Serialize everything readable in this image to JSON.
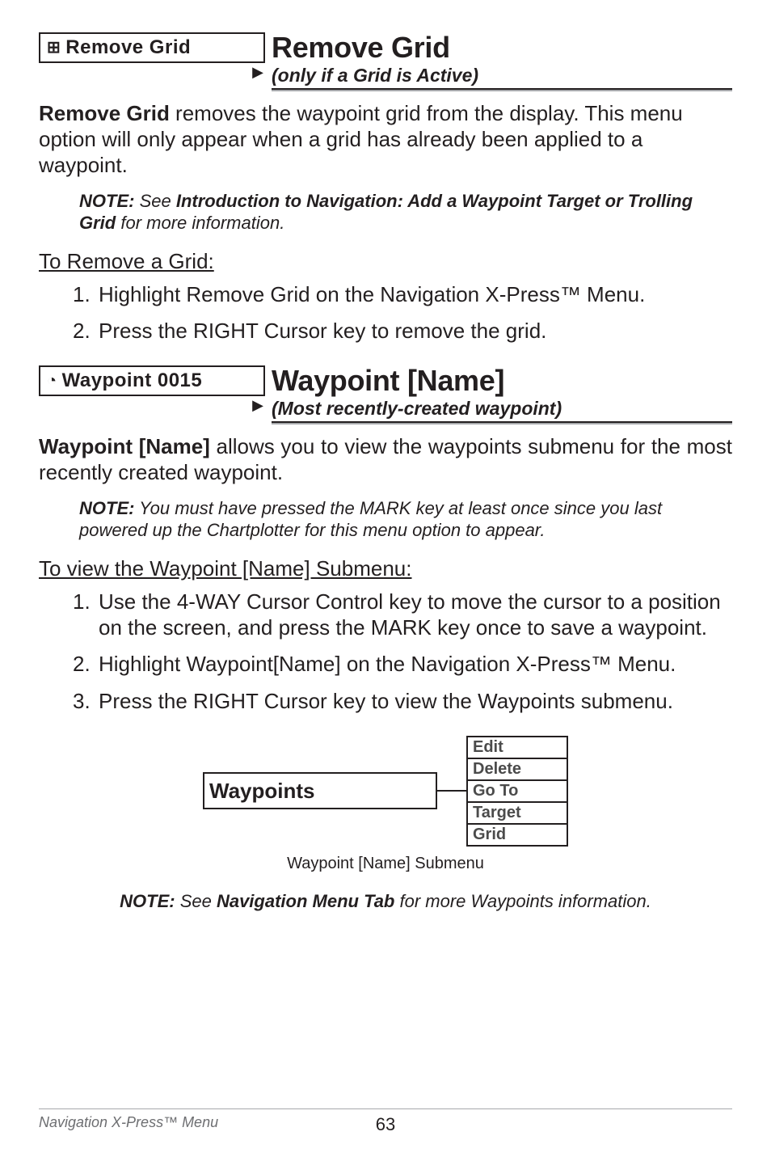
{
  "section1": {
    "menu_icon": "⊞",
    "menu_label": "Remove Grid",
    "arrow": "▶",
    "title": "Remove Grid",
    "subtitle": "(only if a Grid is Active)",
    "intro_bold": "Remove Grid",
    "intro_rest": " removes the waypoint grid from the display. This menu option will only appear when a grid has already been applied to a waypoint.",
    "note_lead": "NOTE:",
    "note_mid1": " See ",
    "note_bold": "Introduction to Navigation: Add a Waypoint Target or Trolling Grid",
    "note_mid2": " for more information.",
    "subhead": "To Remove a Grid:",
    "step1": "Highlight Remove Grid on the Navigation X-Press™ Menu.",
    "step2": "Press the RIGHT Cursor key to remove the grid."
  },
  "section2": {
    "menu_icon": "◔",
    "menu_label": "Waypoint 0015",
    "arrow": "▶",
    "title": "Waypoint [Name]",
    "subtitle": "(Most recently-created waypoint)",
    "intro_bold": "Waypoint [Name]",
    "intro_rest": " allows you to view the waypoints submenu for the most recently created waypoint.",
    "note_lead": "NOTE:",
    "note_rest": " You must have pressed the MARK key at least once since you last powered up the Chartplotter for this menu option to appear.",
    "subhead": "To view the Waypoint [Name] Submenu:",
    "step1": "Use the 4-WAY Cursor Control key to move the cursor to a position on the screen, and press the MARK key once to save a waypoint.",
    "step2": "Highlight Waypoint[Name] on the Navigation X-Press™ Menu.",
    "step3": "Press the RIGHT Cursor key to view the Waypoints submenu.",
    "submenu": {
      "label": "Waypoints",
      "options": [
        "Edit",
        "Delete",
        "Go To",
        "Target",
        "Grid"
      ]
    },
    "caption": "Waypoint [Name] Submenu",
    "note2_lead": "NOTE:",
    "note2_mid1": " See ",
    "note2_bold": "Navigation Menu Tab",
    "note2_mid2": " for more Waypoints information."
  },
  "footer": {
    "left": "Navigation X-Press™ Menu",
    "page": "63"
  }
}
